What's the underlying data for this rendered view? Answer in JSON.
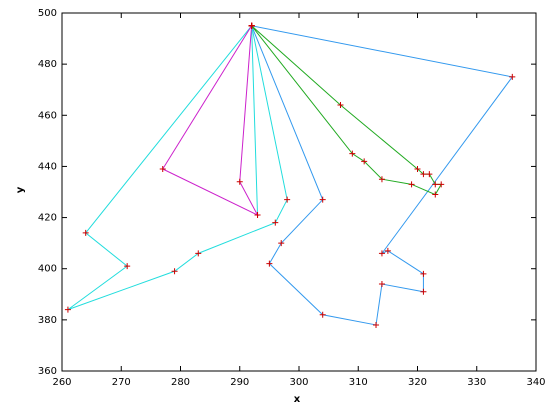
{
  "chart_data": {
    "type": "line",
    "xlabel": "x",
    "ylabel": "y",
    "xlim": [
      260,
      340
    ],
    "ylim": [
      360,
      500
    ],
    "xticks": [
      260,
      270,
      280,
      290,
      300,
      310,
      320,
      330,
      340
    ],
    "yticks": [
      360,
      380,
      400,
      420,
      440,
      460,
      480,
      500
    ],
    "marker_color": "#cc0000",
    "series": [
      {
        "color": "#3399ee",
        "x": [
          292,
          304,
          297,
          295,
          304,
          313,
          314,
          321,
          321,
          315,
          314,
          336,
          292
        ],
        "y": [
          495,
          427,
          410,
          402,
          382,
          378,
          394,
          391,
          398,
          407,
          406,
          475,
          495
        ]
      },
      {
        "color": "#22aa22",
        "x": [
          292,
          307,
          320,
          321,
          322,
          323,
          324,
          323,
          319,
          314,
          311,
          309,
          292
        ],
        "y": [
          495,
          464,
          439,
          437,
          437,
          433,
          433,
          429,
          433,
          435,
          442,
          445,
          495
        ]
      },
      {
        "color": "#22dddd",
        "x": [
          292,
          264,
          271,
          261,
          279,
          283,
          296,
          298,
          292
        ],
        "y": [
          495,
          414,
          401,
          384,
          399,
          406,
          418,
          427,
          495
        ]
      },
      {
        "color": "#22dddd",
        "x": [
          292,
          293,
          292
        ],
        "y": [
          495,
          421,
          495
        ]
      },
      {
        "color": "#cc22cc",
        "x": [
          292,
          290,
          293,
          277,
          292
        ],
        "y": [
          495,
          434,
          421,
          439,
          495
        ]
      }
    ]
  }
}
